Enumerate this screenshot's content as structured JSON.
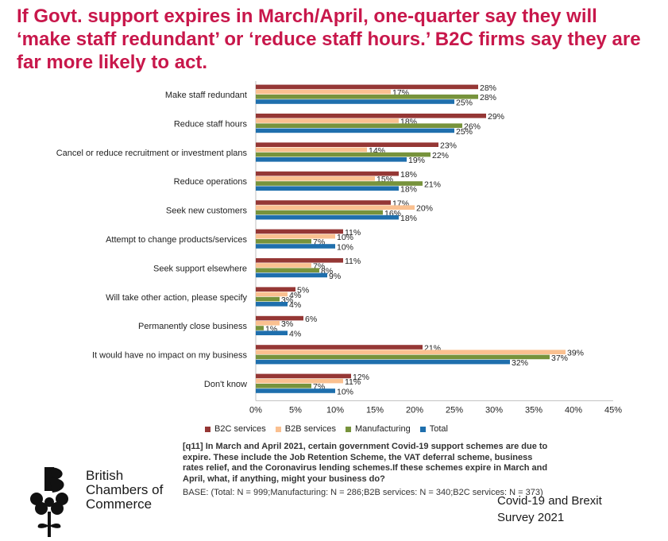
{
  "title": "If Govt. support expires in March/April, one-quarter say they will ‘make staff redundant’ or ‘reduce staff hours.’ B2C firms say they are far more likely to act.",
  "chart_data": {
    "type": "bar",
    "orientation": "horizontal",
    "categories": [
      "Make staff redundant",
      "Reduce staff hours",
      "Cancel or reduce recruitment or investment plans",
      "Reduce operations",
      "Seek new customers",
      "Attempt to change products/services",
      "Seek support elsewhere",
      "Will take other action, please specify",
      "Permanently close business",
      "It would have no impact on my business",
      "Don't know"
    ],
    "series": [
      {
        "name": "B2C services",
        "color": "#953735",
        "values": [
          28,
          29,
          23,
          18,
          17,
          11,
          11,
          5,
          6,
          21,
          12
        ]
      },
      {
        "name": "B2B services",
        "color": "#fac090",
        "values": [
          17,
          18,
          14,
          15,
          20,
          10,
          7,
          4,
          3,
          39,
          11
        ]
      },
      {
        "name": "Manufacturing",
        "color": "#77933c",
        "values": [
          28,
          26,
          22,
          21,
          16,
          7,
          8,
          3,
          1,
          37,
          7
        ]
      },
      {
        "name": "Total",
        "color": "#1f6fad",
        "values": [
          25,
          25,
          19,
          18,
          18,
          10,
          9,
          4,
          4,
          32,
          10
        ]
      }
    ],
    "xlim": [
      0,
      45
    ],
    "xticks": [
      "0%",
      "5%",
      "10%",
      "15%",
      "20%",
      "25%",
      "30%",
      "35%",
      "40%",
      "45%"
    ],
    "value_suffix": "%",
    "legend_position": "bottom"
  },
  "legend": {
    "items": [
      {
        "label": "B2C services",
        "color": "#953735"
      },
      {
        "label": "B2B services",
        "color": "#fac090"
      },
      {
        "label": "Manufacturing",
        "color": "#77933c"
      },
      {
        "label": "Total",
        "color": "#1f6fad"
      }
    ]
  },
  "footnote": {
    "question": "[q11] In March and April 2021, certain government Covid-19 support schemes are due to expire. These include the Job Retention Scheme, the VAT deferral scheme, business rates relief, and the Coronavirus lending schemes.If these schemes expire in March and April, what, if anything, might your business do?",
    "base": "BASE: (Total: N = 999;Manufacturing: N = 286;B2B services: N = 340;B2C services: N = 373)"
  },
  "logo": {
    "line1": "British",
    "line2": "Chambers of",
    "line3": "Commerce"
  },
  "survey": {
    "line1": "Covid-19 and Brexit",
    "line2": "Survey 2021"
  }
}
